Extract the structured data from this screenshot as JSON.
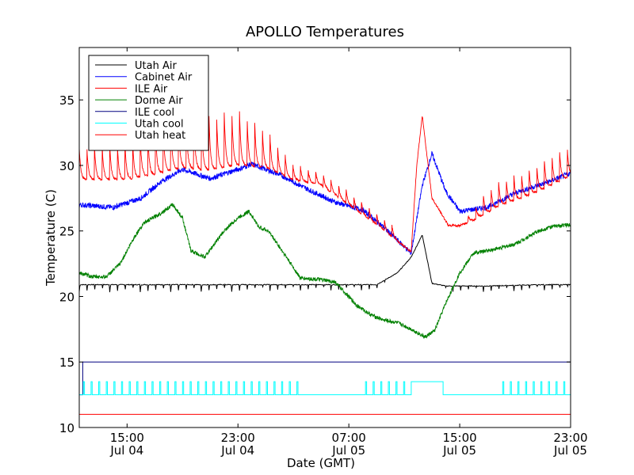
{
  "chart_data": {
    "type": "line",
    "title": "APOLLO Temperatures",
    "xlabel": "Date (GMT)",
    "ylabel": "Temperature (C)",
    "ylim": [
      10,
      39
    ],
    "xlim_hours": [
      -3.45,
      32.0
    ],
    "x_unit_note": "hours since 2024 Jul 04 15:00 GMT reference (tick 15:00 Jul 04 = 0)",
    "yticks": [
      10,
      15,
      20,
      25,
      30,
      35
    ],
    "ytick_labels": [
      "10",
      "15",
      "20",
      "25",
      "30",
      "35"
    ],
    "xticks": [
      0,
      8,
      16,
      24,
      32
    ],
    "xtick_labels": [
      {
        "time": "15:00",
        "date": "Jul 04"
      },
      {
        "time": "23:00",
        "date": "Jul 04"
      },
      {
        "time": "07:00",
        "date": "Jul 05"
      },
      {
        "time": "15:00",
        "date": "Jul 05"
      },
      {
        "time": "23:00",
        "date": "Jul 05"
      }
    ],
    "grid": false,
    "legend_position": "top-left",
    "series": [
      {
        "name": "Utah Air",
        "color": "#000000",
        "style": "cycling",
        "x": [
          -3.45,
          0,
          4,
          8,
          12,
          16,
          18,
          19.5,
          20.5,
          21.3,
          22,
          23,
          26,
          30,
          32
        ],
        "y": [
          20.9,
          20.9,
          20.9,
          20.9,
          20.9,
          20.9,
          20.9,
          21.8,
          23.0,
          24.7,
          21.0,
          20.8,
          20.8,
          20.9,
          20.9
        ],
        "spike_period_h": 0.55,
        "spike_depth": 0.55
      },
      {
        "name": "Cabinet Air",
        "color": "#0000ff",
        "style": "noisy",
        "x": [
          -3.45,
          -1,
          1,
          2.5,
          4,
          6,
          8,
          9,
          11,
          13,
          15,
          17,
          18.5,
          19.5,
          20.5,
          21.3,
          22,
          23,
          24,
          26,
          28,
          30,
          32
        ],
        "y": [
          27.0,
          26.8,
          27.5,
          28.8,
          29.7,
          29.0,
          29.7,
          30.1,
          29.3,
          28.2,
          27.2,
          26.6,
          25.3,
          24.3,
          23.3,
          28.5,
          30.9,
          28.0,
          26.5,
          26.8,
          27.9,
          28.6,
          29.4
        ],
        "noise": 0.2
      },
      {
        "name": "ILE Air",
        "color": "#ff0000",
        "style": "sawtooth",
        "x": [
          -3.45,
          0,
          2,
          4,
          6,
          8,
          10,
          12,
          14,
          16,
          18,
          20.5,
          20.9,
          21.3,
          22,
          23.2,
          24,
          25,
          27,
          29,
          30,
          32
        ],
        "y": [
          28.9,
          28.9,
          29.3,
          29.8,
          29.6,
          30.0,
          29.8,
          28.9,
          28.5,
          27.0,
          25.5,
          23.4,
          30.0,
          33.8,
          27.5,
          25.4,
          25.4,
          25.8,
          27.0,
          27.7,
          28.2,
          29.2
        ],
        "peak_offsets": [
          [
            -3.45,
            2.5
          ],
          [
            0,
            2.8
          ],
          [
            2,
            3.3
          ],
          [
            4,
            4.3
          ],
          [
            6,
            4.5
          ],
          [
            8,
            4.6
          ],
          [
            10,
            3.2
          ],
          [
            12,
            1.3
          ],
          [
            14,
            1.0
          ],
          [
            16,
            1.1
          ],
          [
            18,
            0.9
          ],
          [
            20.5,
            1.0
          ],
          [
            24,
            0.0
          ],
          [
            26,
            1.9
          ],
          [
            29,
            2.1
          ],
          [
            32,
            2.6
          ]
        ]
      },
      {
        "name": "Dome Air",
        "color": "#008000",
        "style": "noisy",
        "x": [
          -3.45,
          -2.5,
          -1.5,
          -0.5,
          0.5,
          1.2,
          2.2,
          3.3,
          4.0,
          4.6,
          5.6,
          7.0,
          8.0,
          8.8,
          9.5,
          10.2,
          11.5,
          12.5,
          13.8,
          15.0,
          15.8,
          16.6,
          17.6,
          18.5,
          19.5,
          20.5,
          21.5,
          22.2,
          23.0,
          24.0,
          25.0,
          26.5,
          28.0,
          29.5,
          30.5,
          32.0
        ],
        "y": [
          21.8,
          21.5,
          21.5,
          22.5,
          24.5,
          25.6,
          26.2,
          27.0,
          26.0,
          23.5,
          23.0,
          25.0,
          26.0,
          26.5,
          25.3,
          25.0,
          23.0,
          21.4,
          21.3,
          21.1,
          20.2,
          19.3,
          18.6,
          18.2,
          18.0,
          17.5,
          16.9,
          17.4,
          19.5,
          21.8,
          23.3,
          23.6,
          24.0,
          24.9,
          25.3,
          25.5
        ],
        "noise": 0.15
      },
      {
        "name": "ILE cool",
        "color": "#000080",
        "style": "step",
        "x": [
          -3.45,
          -3.2,
          -3.2,
          32.0
        ],
        "y": [
          12.5,
          12.5,
          15.0,
          15.0
        ]
      },
      {
        "name": "Utah cool",
        "color": "#00ffff",
        "style": "pulses",
        "baseline": 12.5,
        "high": 13.5,
        "x_window_high": [
          [
            20.5,
            22.8
          ]
        ],
        "pulse_period_h": 0.55
      },
      {
        "name": "Utah heat",
        "color": "#ff0000",
        "style": "flat",
        "x": [
          -3.45,
          32.0
        ],
        "y": [
          11.0,
          11.0
        ]
      }
    ]
  }
}
